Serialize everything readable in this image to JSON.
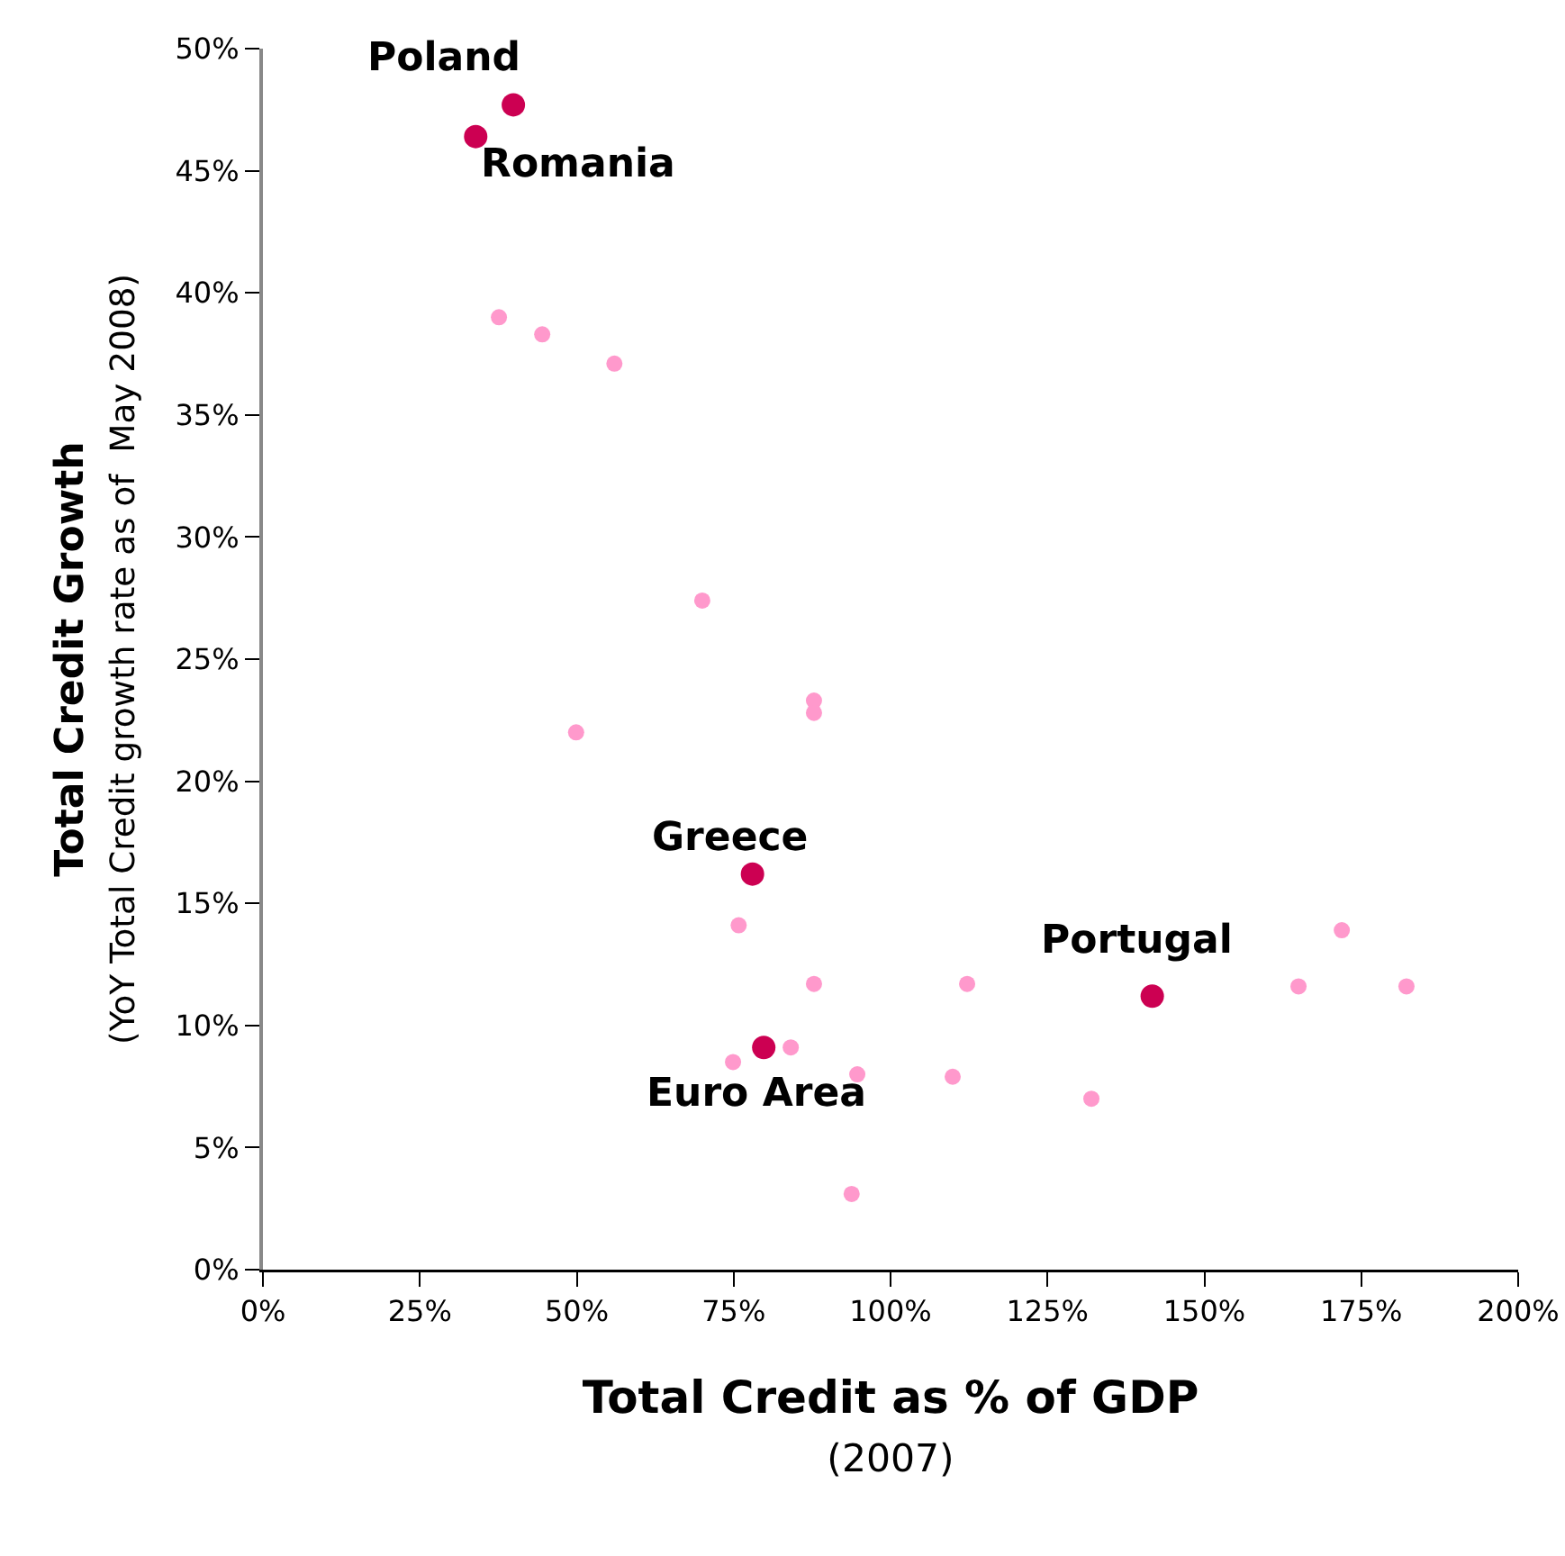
{
  "chart_data": {
    "type": "scatter",
    "xlabel": "Total Credit as % of GDP\n(2007)",
    "ylabel": "Total Credit Growth\n(YoY Total Credit growth rate as of  May 2008)",
    "xlim": [
      0,
      200
    ],
    "xticks": [
      {
        "value": 0,
        "label": "0%"
      },
      {
        "value": 25,
        "label": "25%"
      },
      {
        "value": 50,
        "label": "50%"
      },
      {
        "value": 75,
        "label": "75%"
      },
      {
        "value": 100,
        "label": "100%"
      },
      {
        "value": 125,
        "label": "125%"
      },
      {
        "value": 150,
        "label": "150%"
      },
      {
        "value": 175,
        "label": "175%"
      },
      {
        "value": 200,
        "label": "200%"
      }
    ],
    "ylim": [
      0,
      50
    ],
    "yticks": [
      {
        "value": 0,
        "label": "0%"
      },
      {
        "value": 5,
        "label": "5%"
      },
      {
        "value": 10,
        "label": "10%"
      },
      {
        "value": 15,
        "label": "15%"
      },
      {
        "value": 20,
        "label": "20%"
      },
      {
        "value": 25,
        "label": "25%"
      },
      {
        "value": 30,
        "label": "30%"
      },
      {
        "value": 35,
        "label": "35%"
      },
      {
        "value": 40,
        "label": "40%"
      },
      {
        "value": 45,
        "label": "45%"
      },
      {
        "value": 50,
        "label": "50%"
      }
    ],
    "grid": false,
    "marker": "circle",
    "series": [
      {
        "color": "#ff99cc",
        "x": [
          37.6,
          44.5,
          56.0,
          70.0,
          87.8,
          87.8,
          49.9,
          75.8,
          87.8,
          112.2,
          171.9,
          165.0,
          182.2,
          74.9,
          84.1,
          94.7,
          109.9,
          132.0,
          93.8
        ],
        "values": [
          39.0,
          38.3,
          37.1,
          27.4,
          23.3,
          22.8,
          22.0,
          14.1,
          11.7,
          11.7,
          13.9,
          11.6,
          11.6,
          8.5,
          9.1,
          8.0,
          7.9,
          7.0,
          3.1
        ]
      },
      {
        "color": "#cc0052",
        "x": [
          39.9,
          33.9,
          78.0,
          79.8,
          141.7
        ],
        "values": [
          47.7,
          46.4,
          16.2,
          9.1,
          11.2
        ]
      }
    ],
    "annotations": [
      {
        "text": "Poland",
        "x": 39.9,
        "y": 47.7
      },
      {
        "text": "Romania",
        "x": 33.9,
        "y": 46.4
      },
      {
        "text": "Greece",
        "x": 78.0,
        "y": 16.2
      },
      {
        "text": "Euro Area",
        "x": 79.8,
        "y": 9.1
      },
      {
        "text": "Portugal",
        "x": 141.7,
        "y": 11.2
      }
    ]
  }
}
